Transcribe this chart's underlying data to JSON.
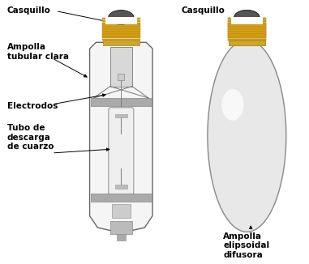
{
  "bg_color": "#ffffff",
  "label_color": "#000000",
  "fig_width": 3.81,
  "fig_height": 3.26,
  "labels": {
    "casquillo_left": "Casquillo",
    "ampolla_tubular": "Ampolla\ntubular clara",
    "electrodos": "Electrodos",
    "tubo_descarga": "Tubo de\ndescarga\nde cuarzo",
    "casquillo_right": "Casquillo",
    "ampolla_elipsoidal": "Ampolla\nelipsoidal\ndifusora"
  },
  "label_fontsize": 7.5,
  "label_fontweight": "bold",
  "cap_dark_color": "#555555",
  "cap_thread_color": "#D4A017",
  "cap_thread_edge": "#B8860B",
  "cap_band_color": "#C8A830",
  "glass_face": "#F5F5F5",
  "glass_edge": "#666666",
  "ring_color": "#AAAAAA",
  "ring_edge": "#888888",
  "quartz_face": "#F0F0F0",
  "quartz_edge": "#999999",
  "internal_color": "#777777",
  "bulb_right_face": "#DCDCDC",
  "bulb_right_edge": "#888888"
}
